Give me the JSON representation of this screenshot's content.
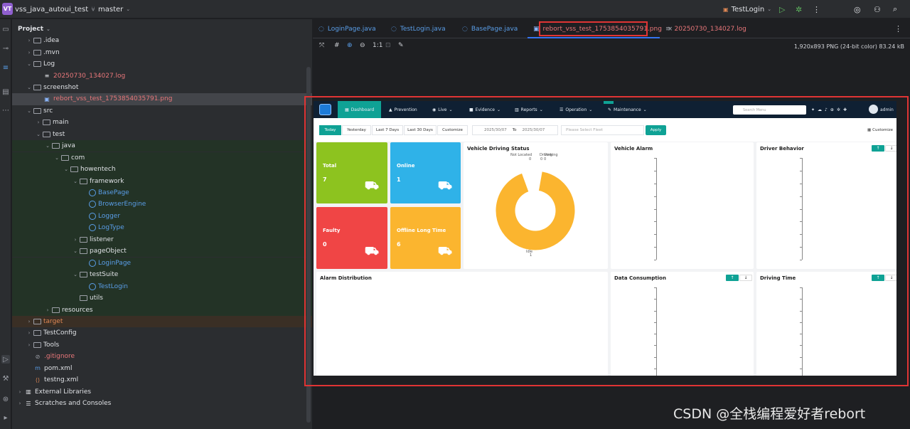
{
  "titlebar": {
    "badge": "VT",
    "project_name": "vss_java_autoui_test",
    "branch": "master",
    "run_config": "TestLogin"
  },
  "project_panel": {
    "title": "Project",
    "tree": [
      {
        "label": ".idea",
        "level": 2,
        "kind": "folder",
        "chev": "›"
      },
      {
        "label": ".mvn",
        "level": 2,
        "kind": "folder",
        "chev": "›"
      },
      {
        "label": "Log",
        "level": 2,
        "kind": "folder",
        "chev": "⌄"
      },
      {
        "label": "20250730_134027.log",
        "level": 3,
        "kind": "log",
        "chev": ""
      },
      {
        "label": "screenshot",
        "level": 2,
        "kind": "folder",
        "chev": "⌄"
      },
      {
        "label": "rebort_vss_test_1753854035791.png",
        "level": 3,
        "kind": "image",
        "chev": ""
      },
      {
        "label": "src",
        "level": 2,
        "kind": "folder",
        "chev": "⌄"
      },
      {
        "label": "main",
        "level": 3,
        "kind": "folder",
        "chev": "›"
      },
      {
        "label": "test",
        "level": 3,
        "kind": "folder",
        "chev": "⌄"
      },
      {
        "label": "java",
        "level": 4,
        "kind": "folder",
        "chev": "⌄"
      },
      {
        "label": "com",
        "level": 5,
        "kind": "folder",
        "chev": "⌄"
      },
      {
        "label": "howentech",
        "level": 6,
        "kind": "folder",
        "chev": "⌄"
      },
      {
        "label": "framework",
        "level": 7,
        "kind": "folder",
        "chev": "⌄"
      },
      {
        "label": "BasePage",
        "level": 8,
        "kind": "class",
        "chev": ""
      },
      {
        "label": "BrowserEngine",
        "level": 8,
        "kind": "class",
        "chev": ""
      },
      {
        "label": "Logger",
        "level": 8,
        "kind": "class",
        "chev": ""
      },
      {
        "label": "LogType",
        "level": 8,
        "kind": "class",
        "chev": ""
      },
      {
        "label": "listener",
        "level": 7,
        "kind": "folder",
        "chev": "›"
      },
      {
        "label": "pageObject",
        "level": 7,
        "kind": "folder",
        "chev": "⌄"
      },
      {
        "label": "LoginPage",
        "level": 8,
        "kind": "class",
        "chev": ""
      },
      {
        "label": "testSuite",
        "level": 7,
        "kind": "folder",
        "chev": "⌄"
      },
      {
        "label": "TestLogin",
        "level": 8,
        "kind": "class",
        "chev": ""
      },
      {
        "label": "utils",
        "level": 7,
        "kind": "folder",
        "chev": ""
      },
      {
        "label": "resources",
        "level": 4,
        "kind": "folder",
        "chev": "›"
      },
      {
        "label": "target",
        "level": 2,
        "kind": "folder",
        "chev": "›"
      },
      {
        "label": "TestConfig",
        "level": 2,
        "kind": "folder",
        "chev": "›"
      },
      {
        "label": "Tools",
        "level": 2,
        "kind": "folder",
        "chev": "›"
      },
      {
        "label": ".gitignore",
        "level": 2,
        "kind": "git",
        "chev": ""
      },
      {
        "label": "pom.xml",
        "level": 2,
        "kind": "maven",
        "chev": ""
      },
      {
        "label": "testng.xml",
        "level": 2,
        "kind": "xml",
        "chev": ""
      },
      {
        "label": "External Libraries",
        "level": 1,
        "kind": "lib",
        "chev": "›"
      },
      {
        "label": "Scratches and Consoles",
        "level": 1,
        "kind": "scratch",
        "chev": "›"
      }
    ]
  },
  "tabs": [
    {
      "label": "LoginPage.java"
    },
    {
      "label": "TestLogin.java"
    },
    {
      "label": "BasePage.java"
    },
    {
      "label": "rebort_vss_test_1753854035791.png"
    },
    {
      "label": "20250730_134027.log"
    }
  ],
  "image_viewer": {
    "zoom_label": "1:1",
    "info": "1,920x893 PNG (24-bit color) 83.24 kB"
  },
  "dashboard": {
    "nav": [
      "Dashboard",
      "Prevention",
      "Live",
      "Evidence",
      "Reports",
      "Operation",
      "Maintenance"
    ],
    "search_placeholder": "Search Menu",
    "user": "admin",
    "filters": [
      "Today",
      "Yesterday",
      "Last 7 Days",
      "Last 30 Days",
      "Customize"
    ],
    "date_from": "2025/30/07",
    "date_to_label": "To",
    "date_to": "2025/30/07",
    "fleet_placeholder": "Please Select Fleet",
    "apply": "Apply",
    "customize_right": "Customize",
    "cards": [
      {
        "label": "Total",
        "value": "7",
        "color": "#8dc31f"
      },
      {
        "label": "Online",
        "value": "1",
        "color": "#2fb2e8"
      },
      {
        "label": "Faulty",
        "value": "0",
        "color": "#f04545"
      },
      {
        "label": "Offline Long Time",
        "value": "6",
        "color": "#fbb52f"
      }
    ],
    "panels": {
      "driving_status": "Vehicle Driving Status",
      "vehicle_alarm": "Vehicle Alarm",
      "driver_behavior": "Driver Behavior",
      "alarm_distribution": "Alarm Distribution",
      "data_consumption": "Data Consumption",
      "driving_time": "Driving Time"
    },
    "donut_labels": {
      "not_located": "Not Located",
      "not_located_val": "0",
      "driving": "Driving",
      "driving_val": "0",
      "parking": "Parking",
      "parking_val": "0",
      "idle": "Idle",
      "idle_val": "1"
    },
    "donut_color": "#fbb52f"
  },
  "watermark": "CSDN @全栈编程爱好者rebort"
}
